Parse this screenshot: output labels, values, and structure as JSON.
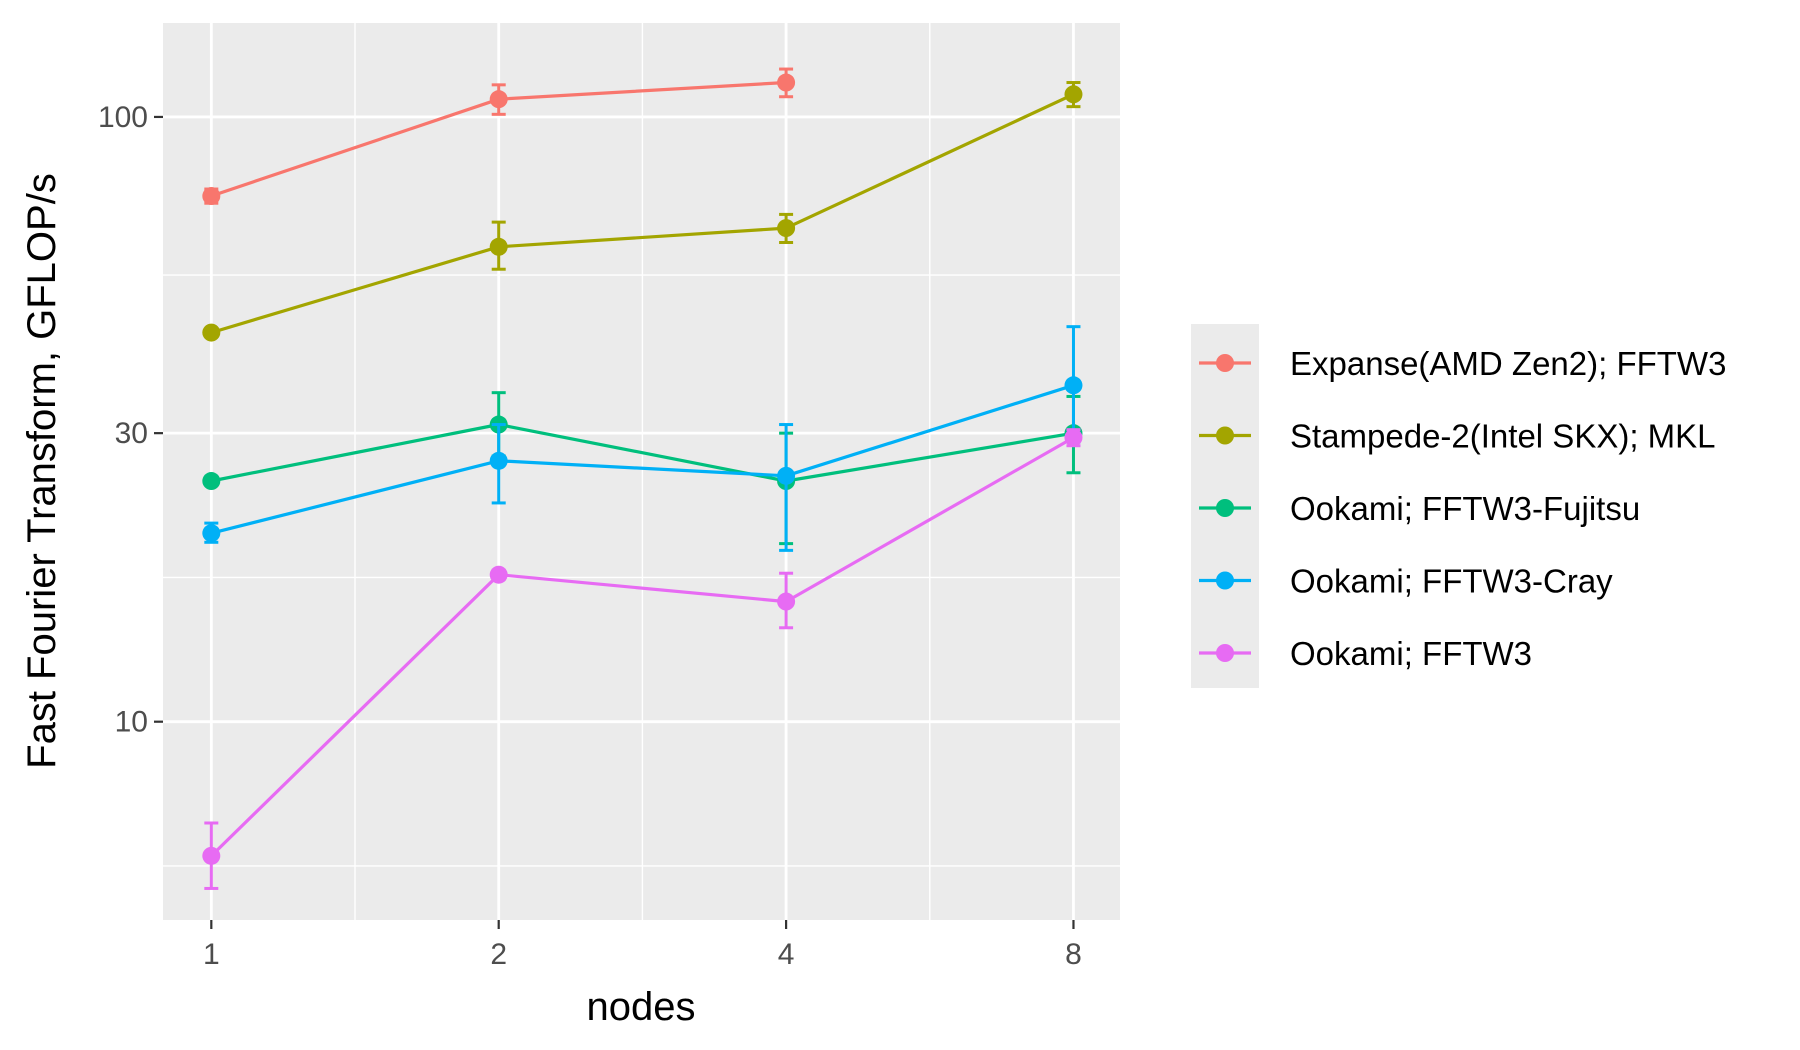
{
  "chart_data": {
    "type": "line",
    "xlabel": "nodes",
    "ylabel": "Fast Fourier Transform, GFLOP/s",
    "x": [
      1,
      2,
      4,
      8
    ],
    "x_scale": "log2",
    "y_scale": "log10",
    "xticks": [
      "1",
      "2",
      "4",
      "8"
    ],
    "yticks": [
      {
        "value": 10,
        "label": "10"
      },
      {
        "value": 30,
        "label": "30"
      },
      {
        "value": 100,
        "label": "100"
      }
    ],
    "xlim": [
      0.89,
      8.95
    ],
    "ylim": [
      4.7,
      143
    ],
    "grid": true,
    "legend_position": "right",
    "series": [
      {
        "name": "Expanse(AMD Zen2); FFTW3",
        "color": "#F8766D",
        "x": [
          1,
          2,
          4
        ],
        "y": [
          74,
          107,
          114
        ],
        "err_low": [
          72,
          101,
          108
        ],
        "err_high": [
          76,
          113,
          120
        ]
      },
      {
        "name": "Stampede-2(Intel SKX); MKL",
        "color": "#A3A500",
        "x": [
          1,
          2,
          4,
          8
        ],
        "y": [
          44,
          61,
          65.5,
          109
        ],
        "err_low": [
          44,
          56,
          62,
          104
        ],
        "err_high": [
          44,
          67,
          69,
          114
        ]
      },
      {
        "name": "Ookami; FFTW3-Fujitsu",
        "color": "#00BF7D",
        "x": [
          1,
          2,
          4,
          8
        ],
        "y": [
          25,
          31,
          25,
          30
        ],
        "err_low": [
          25,
          27.5,
          19.7,
          25.8
        ],
        "err_high": [
          25,
          35,
          30,
          34.5
        ]
      },
      {
        "name": "Ookami; FFTW3-Cray",
        "color": "#00B0F6",
        "x": [
          1,
          2,
          4,
          8
        ],
        "y": [
          20.5,
          27,
          25.5,
          36
        ],
        "err_low": [
          19.8,
          23,
          19.2,
          29
        ],
        "err_high": [
          21.3,
          31,
          31,
          45
        ]
      },
      {
        "name": "Ookami; FFTW3",
        "color": "#E76BF3",
        "x": [
          1,
          2,
          4,
          8
        ],
        "y": [
          6.0,
          17.5,
          15.8,
          29.5
        ],
        "err_low": [
          5.3,
          17.2,
          14.3,
          28.6
        ],
        "err_high": [
          6.8,
          17.8,
          17.6,
          30.4
        ]
      }
    ]
  }
}
